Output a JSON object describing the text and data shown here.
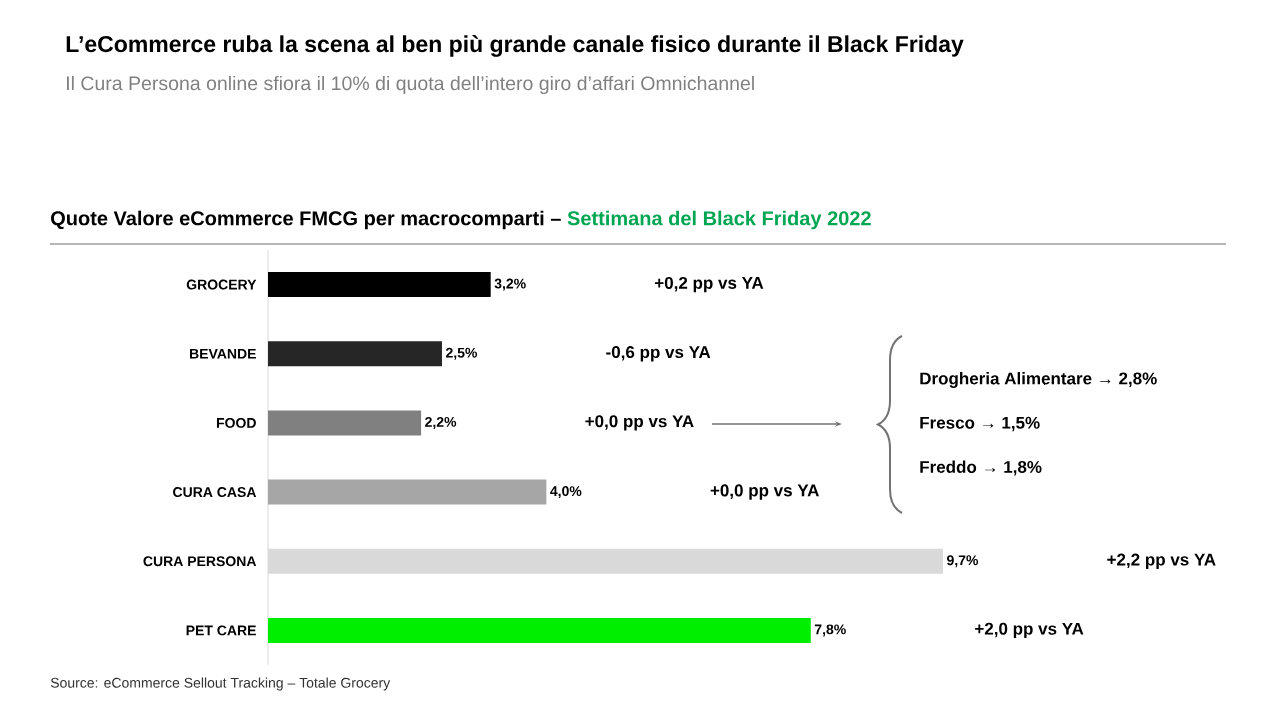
{
  "chart_data": {
    "type": "bar",
    "orientation": "horizontal",
    "title": "L’eCommerce ruba la scena al ben più grande canale fisico durante il Black Friday",
    "subtitle": "Il Cura Persona online sfiora il 10% di quota dell’intero giro d’affari Omnichannel",
    "categories": [
      "GROCERY",
      "BEVANDE",
      "FOOD",
      "CURA CASA",
      "CURA PERSONA",
      "PET CARE"
    ],
    "values": [
      3.2,
      2.5,
      2.2,
      4.0,
      9.7,
      7.8
    ],
    "colors": [
      "#000000",
      "#262626",
      "#808080",
      "#a6a6a6",
      "#d9d9d9",
      "#00ee00"
    ],
    "value_labels": [
      "3,2%",
      "2,5%",
      "2,2%",
      "4,0%",
      "9,7%",
      "7,8%"
    ],
    "tick_labels": "y",
    "annotations": [
      "Quote Valore eCommerce FMCG per macrocomparti – ",
      "Settimana del Black Friday 2022",
      "Drogheria Alimentare → 2,8%",
      "Fresco → 1,5%",
      "Freddo → 1,8%",
      "Source: eCommerce Sellout Tracking – Totale Grocery",
      "+0,2 pp vs YA",
      "-0,6 pp vs YA",
      "+0,0 pp vs YA",
      "+0,0 pp vs YA",
      "+2,2 pp vs YA",
      "+2,0 pp vs YA"
    ]
  }
}
